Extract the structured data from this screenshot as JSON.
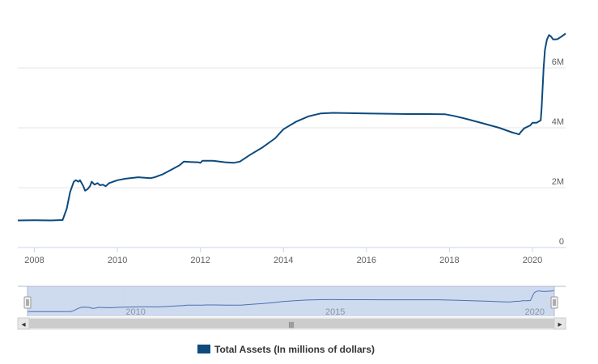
{
  "chart_data": {
    "type": "line",
    "title": "",
    "xlabel": "",
    "ylabel": "",
    "xlim": [
      2007.6,
      2020.8
    ],
    "ylim": [
      0,
      8000000
    ],
    "x_ticks": [
      {
        "value": 2008,
        "label": "2008"
      },
      {
        "value": 2010,
        "label": "2010"
      },
      {
        "value": 2012,
        "label": "2012"
      },
      {
        "value": 2014,
        "label": "2014"
      },
      {
        "value": 2016,
        "label": "2016"
      },
      {
        "value": 2018,
        "label": "2018"
      },
      {
        "value": 2020,
        "label": "2020"
      }
    ],
    "y_ticks": [
      {
        "value": 0,
        "label": "0"
      },
      {
        "value": 2000000,
        "label": "2M"
      },
      {
        "value": 4000000,
        "label": "4M"
      },
      {
        "value": 6000000,
        "label": "6M"
      }
    ],
    "grid": true,
    "legend_position": "bottom-center",
    "series": [
      {
        "name": "Total Assets (In millions of dollars)",
        "color": "#0d4a7e",
        "x": [
          2007.6,
          2008.0,
          2008.4,
          2008.68,
          2008.78,
          2008.86,
          2008.95,
          2009.0,
          2009.06,
          2009.1,
          2009.18,
          2009.22,
          2009.28,
          2009.34,
          2009.38,
          2009.45,
          2009.52,
          2009.58,
          2009.65,
          2009.72,
          2009.8,
          2009.9,
          2010.0,
          2010.2,
          2010.5,
          2010.8,
          2010.9,
          2011.1,
          2011.3,
          2011.5,
          2011.6,
          2011.75,
          2011.95,
          2012.0,
          2012.05,
          2012.3,
          2012.6,
          2012.8,
          2012.95,
          2013.2,
          2013.5,
          2013.8,
          2014.0,
          2014.3,
          2014.6,
          2014.9,
          2015.2,
          2015.6,
          2016.0,
          2016.5,
          2017.0,
          2017.5,
          2017.9,
          2018.1,
          2018.4,
          2018.8,
          2019.2,
          2019.5,
          2019.68,
          2019.72,
          2019.8,
          2019.95,
          2020.0,
          2020.1,
          2020.2,
          2020.22,
          2020.27,
          2020.3,
          2020.35,
          2020.4,
          2020.45,
          2020.5,
          2020.6,
          2020.7,
          2020.8
        ],
        "values": [
          905000,
          910000,
          905000,
          920000,
          1300000,
          1850000,
          2200000,
          2250000,
          2200000,
          2250000,
          2050000,
          1900000,
          1950000,
          2050000,
          2200000,
          2100000,
          2150000,
          2080000,
          2100000,
          2050000,
          2150000,
          2200000,
          2250000,
          2300000,
          2350000,
          2320000,
          2350000,
          2450000,
          2600000,
          2750000,
          2870000,
          2860000,
          2850000,
          2830000,
          2900000,
          2900000,
          2850000,
          2830000,
          2870000,
          3100000,
          3350000,
          3650000,
          3950000,
          4200000,
          4380000,
          4480000,
          4500000,
          4490000,
          4480000,
          4470000,
          4460000,
          4460000,
          4450000,
          4400000,
          4300000,
          4150000,
          4000000,
          3850000,
          3780000,
          3860000,
          3980000,
          4080000,
          4170000,
          4170000,
          4250000,
          4650000,
          6000000,
          6600000,
          6950000,
          7100000,
          7050000,
          6950000,
          6960000,
          7050000,
          7150000
        ]
      }
    ],
    "navigator": {
      "x_ticks": [
        {
          "value": 2010,
          "label": "2010"
        },
        {
          "value": 2015,
          "label": "2015"
        },
        {
          "value": 2020,
          "label": "2020"
        }
      ],
      "selected_range": [
        2007.6,
        2020.8
      ]
    }
  },
  "colors": {
    "series": "#0d4a7e",
    "grid": "#e6e6e6",
    "navigator_mask": "#c9d6ec",
    "navigator_line": "#4c6fb5",
    "scrollbar_track": "#eeeeee",
    "scrollbar_thumb": "#cccccc"
  },
  "scrollbar": {
    "left_arrow": "◂",
    "right_arrow": "▸",
    "thumb_grip": "|||"
  },
  "legend": {
    "label": "Total Assets (In millions of dollars)"
  }
}
